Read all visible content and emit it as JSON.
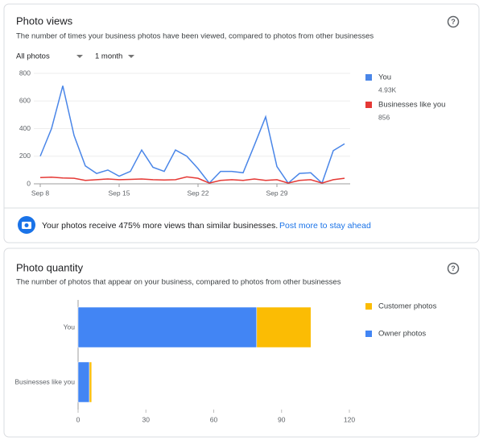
{
  "ui": {
    "filter": "All photos",
    "period": "1 month",
    "banner_text": "Your photos receive 475% more views than similar businesses.",
    "banner_link": "Post more to stay ahead"
  },
  "chart_data": [
    {
      "type": "line",
      "title": "Photo views",
      "subtitle": "The number of times your business photos have been viewed, compared to photos from other businesses",
      "categories": [
        "Sep 8",
        null,
        null,
        null,
        null,
        null,
        null,
        "Sep 15",
        null,
        null,
        null,
        null,
        null,
        null,
        "Sep 22",
        null,
        null,
        null,
        null,
        null,
        null,
        "Sep 29",
        null,
        null,
        null,
        null,
        null,
        null
      ],
      "series": [
        {
          "name": "You",
          "color": "#4a86e8",
          "total": "4.93K",
          "values": [
            200,
            400,
            710,
            350,
            130,
            75,
            100,
            55,
            90,
            245,
            120,
            90,
            245,
            200,
            110,
            5,
            90,
            90,
            80,
            280,
            485,
            125,
            5,
            75,
            80,
            5,
            240,
            290
          ]
        },
        {
          "name": "Businesses like you",
          "color": "#e53935",
          "total": "856",
          "values": [
            45,
            48,
            42,
            40,
            25,
            30,
            35,
            30,
            32,
            35,
            30,
            28,
            30,
            50,
            40,
            5,
            25,
            30,
            25,
            35,
            25,
            30,
            5,
            25,
            30,
            5,
            30,
            40
          ]
        }
      ],
      "ylim": [
        0,
        800
      ],
      "yticks": [
        0,
        200,
        400,
        600,
        800
      ],
      "grid": true
    },
    {
      "type": "stacked_barh",
      "title": "Photo quantity",
      "subtitle": "The number of photos that appear on your business, compared to photos from other businesses",
      "categories": [
        "You",
        "Businesses like you"
      ],
      "series": [
        {
          "name": "Customer photos",
          "color": "#fbbc04",
          "values": [
            24,
            1
          ]
        },
        {
          "name": "Owner photos",
          "color": "#4285f4",
          "values": [
            79,
            5
          ]
        }
      ],
      "xlim": [
        0,
        120
      ],
      "xticks": [
        0,
        30,
        60,
        90,
        120
      ]
    }
  ]
}
